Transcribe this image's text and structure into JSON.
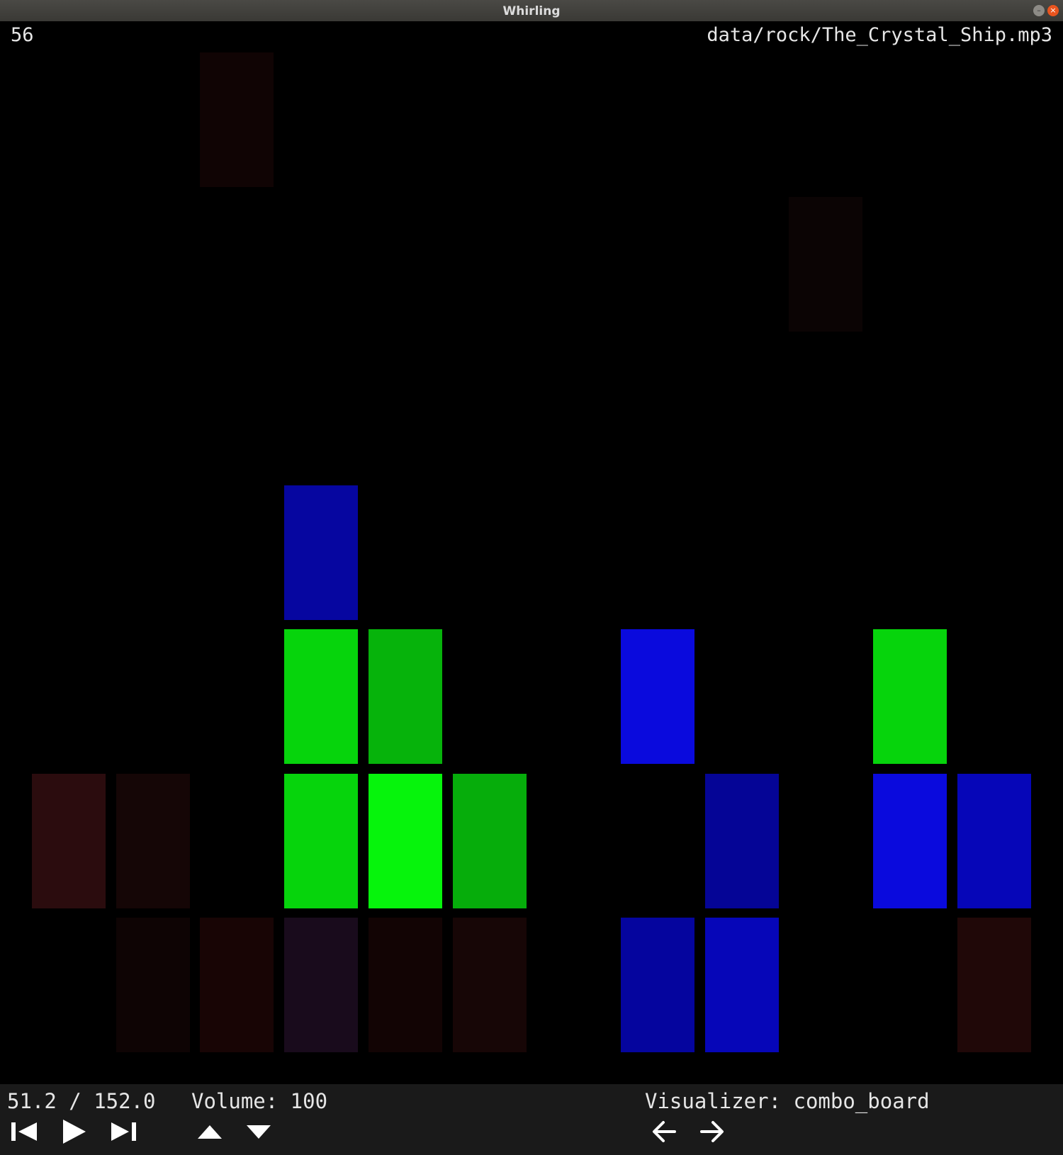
{
  "window": {
    "title": "Whirling"
  },
  "overlay": {
    "counter": "56",
    "file_path": "data/rock/The_Crystal_Ship.mp3"
  },
  "status": {
    "time": "51.2 / 152.0",
    "volume": "Volume: 100",
    "visualizer": "Visualizer: combo_board"
  },
  "icons": [
    "previous-track-icon",
    "play-icon",
    "next-track-icon",
    "volume-up-icon",
    "volume-down-icon",
    "previous-visualizer-icon",
    "next-visualizer-icon"
  ],
  "board": {
    "columns": 12,
    "rows": 7,
    "cells": [
      {
        "col": 2,
        "row": 0,
        "color": "#100404"
      },
      {
        "col": 9,
        "row": 1,
        "color": "#0b0404"
      },
      {
        "col": 3,
        "row": 3,
        "color": "#0606a0"
      },
      {
        "col": 3,
        "row": 4,
        "color": "#06d40c"
      },
      {
        "col": 4,
        "row": 4,
        "color": "#06b30b"
      },
      {
        "col": 7,
        "row": 4,
        "color": "#0a0add"
      },
      {
        "col": 10,
        "row": 4,
        "color": "#06d40c"
      },
      {
        "col": 0,
        "row": 5,
        "color": "#2b0c0e"
      },
      {
        "col": 1,
        "row": 5,
        "color": "#150606"
      },
      {
        "col": 3,
        "row": 5,
        "color": "#06d40c"
      },
      {
        "col": 4,
        "row": 5,
        "color": "#06f40c"
      },
      {
        "col": 5,
        "row": 5,
        "color": "#06ad0b"
      },
      {
        "col": 8,
        "row": 5,
        "color": "#050596"
      },
      {
        "col": 10,
        "row": 5,
        "color": "#0a0add"
      },
      {
        "col": 11,
        "row": 5,
        "color": "#0606b8"
      },
      {
        "col": 1,
        "row": 6,
        "color": "#0e0404"
      },
      {
        "col": 2,
        "row": 6,
        "color": "#180505"
      },
      {
        "col": 3,
        "row": 6,
        "color": "#190b1c"
      },
      {
        "col": 4,
        "row": 6,
        "color": "#120404"
      },
      {
        "col": 5,
        "row": 6,
        "color": "#170606"
      },
      {
        "col": 7,
        "row": 6,
        "color": "#05059e"
      },
      {
        "col": 8,
        "row": 6,
        "color": "#0606b8"
      },
      {
        "col": 11,
        "row": 6,
        "color": "#200808"
      }
    ]
  }
}
